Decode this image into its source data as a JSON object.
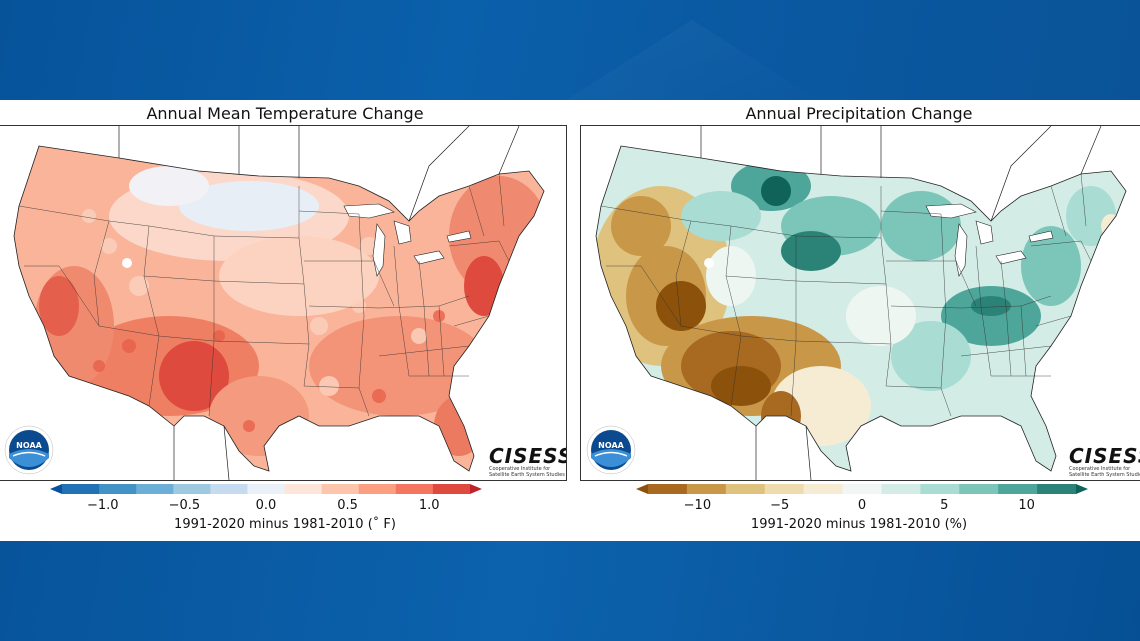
{
  "maps": [
    {
      "title": "Annual Mean Temperature Change",
      "colorbar_label": "1991-2020 minus 1981-2010 (˚ F)",
      "ticks": [
        "−1.0",
        "−0.5",
        "0.0",
        "0.5",
        "1.0"
      ],
      "tick_values": [
        -1.0,
        -0.5,
        0.0,
        0.5,
        1.0
      ],
      "range": [
        -1.25,
        1.25
      ],
      "colors": [
        "#08519c",
        "#2171b5",
        "#4292c6",
        "#6baed6",
        "#9ecae1",
        "#c6dbef",
        "#eaf1f8",
        "#fde5d9",
        "#fcc5ac",
        "#fb9f80",
        "#f47560",
        "#de4a3e",
        "#c0242b"
      ],
      "logo_text": "CISESS",
      "logo_subtext": "Cooperative Institute for Satellite Earth System Studies",
      "noaa_text": "NOAA"
    },
    {
      "title": "Annual Precipitation Change",
      "colorbar_label": "1991-2020 minus 1981-2010 (%)",
      "ticks": [
        "−10",
        "−5",
        "0",
        "5",
        "10"
      ],
      "tick_values": [
        -10,
        -5,
        0,
        5,
        10
      ],
      "range": [
        -13,
        13
      ],
      "colors": [
        "#8c510a",
        "#a86a20",
        "#c99748",
        "#dfc27d",
        "#eedcae",
        "#f6ecd4",
        "#f2f7f5",
        "#d3ece6",
        "#a9dcd3",
        "#7cc6b9",
        "#4ea69a",
        "#2a8376",
        "#0f6358"
      ],
      "logo_text": "CISESS",
      "logo_subtext": "Cooperative Institute for Satellite Earth System Studies",
      "noaa_text": "NOAA"
    }
  ]
}
